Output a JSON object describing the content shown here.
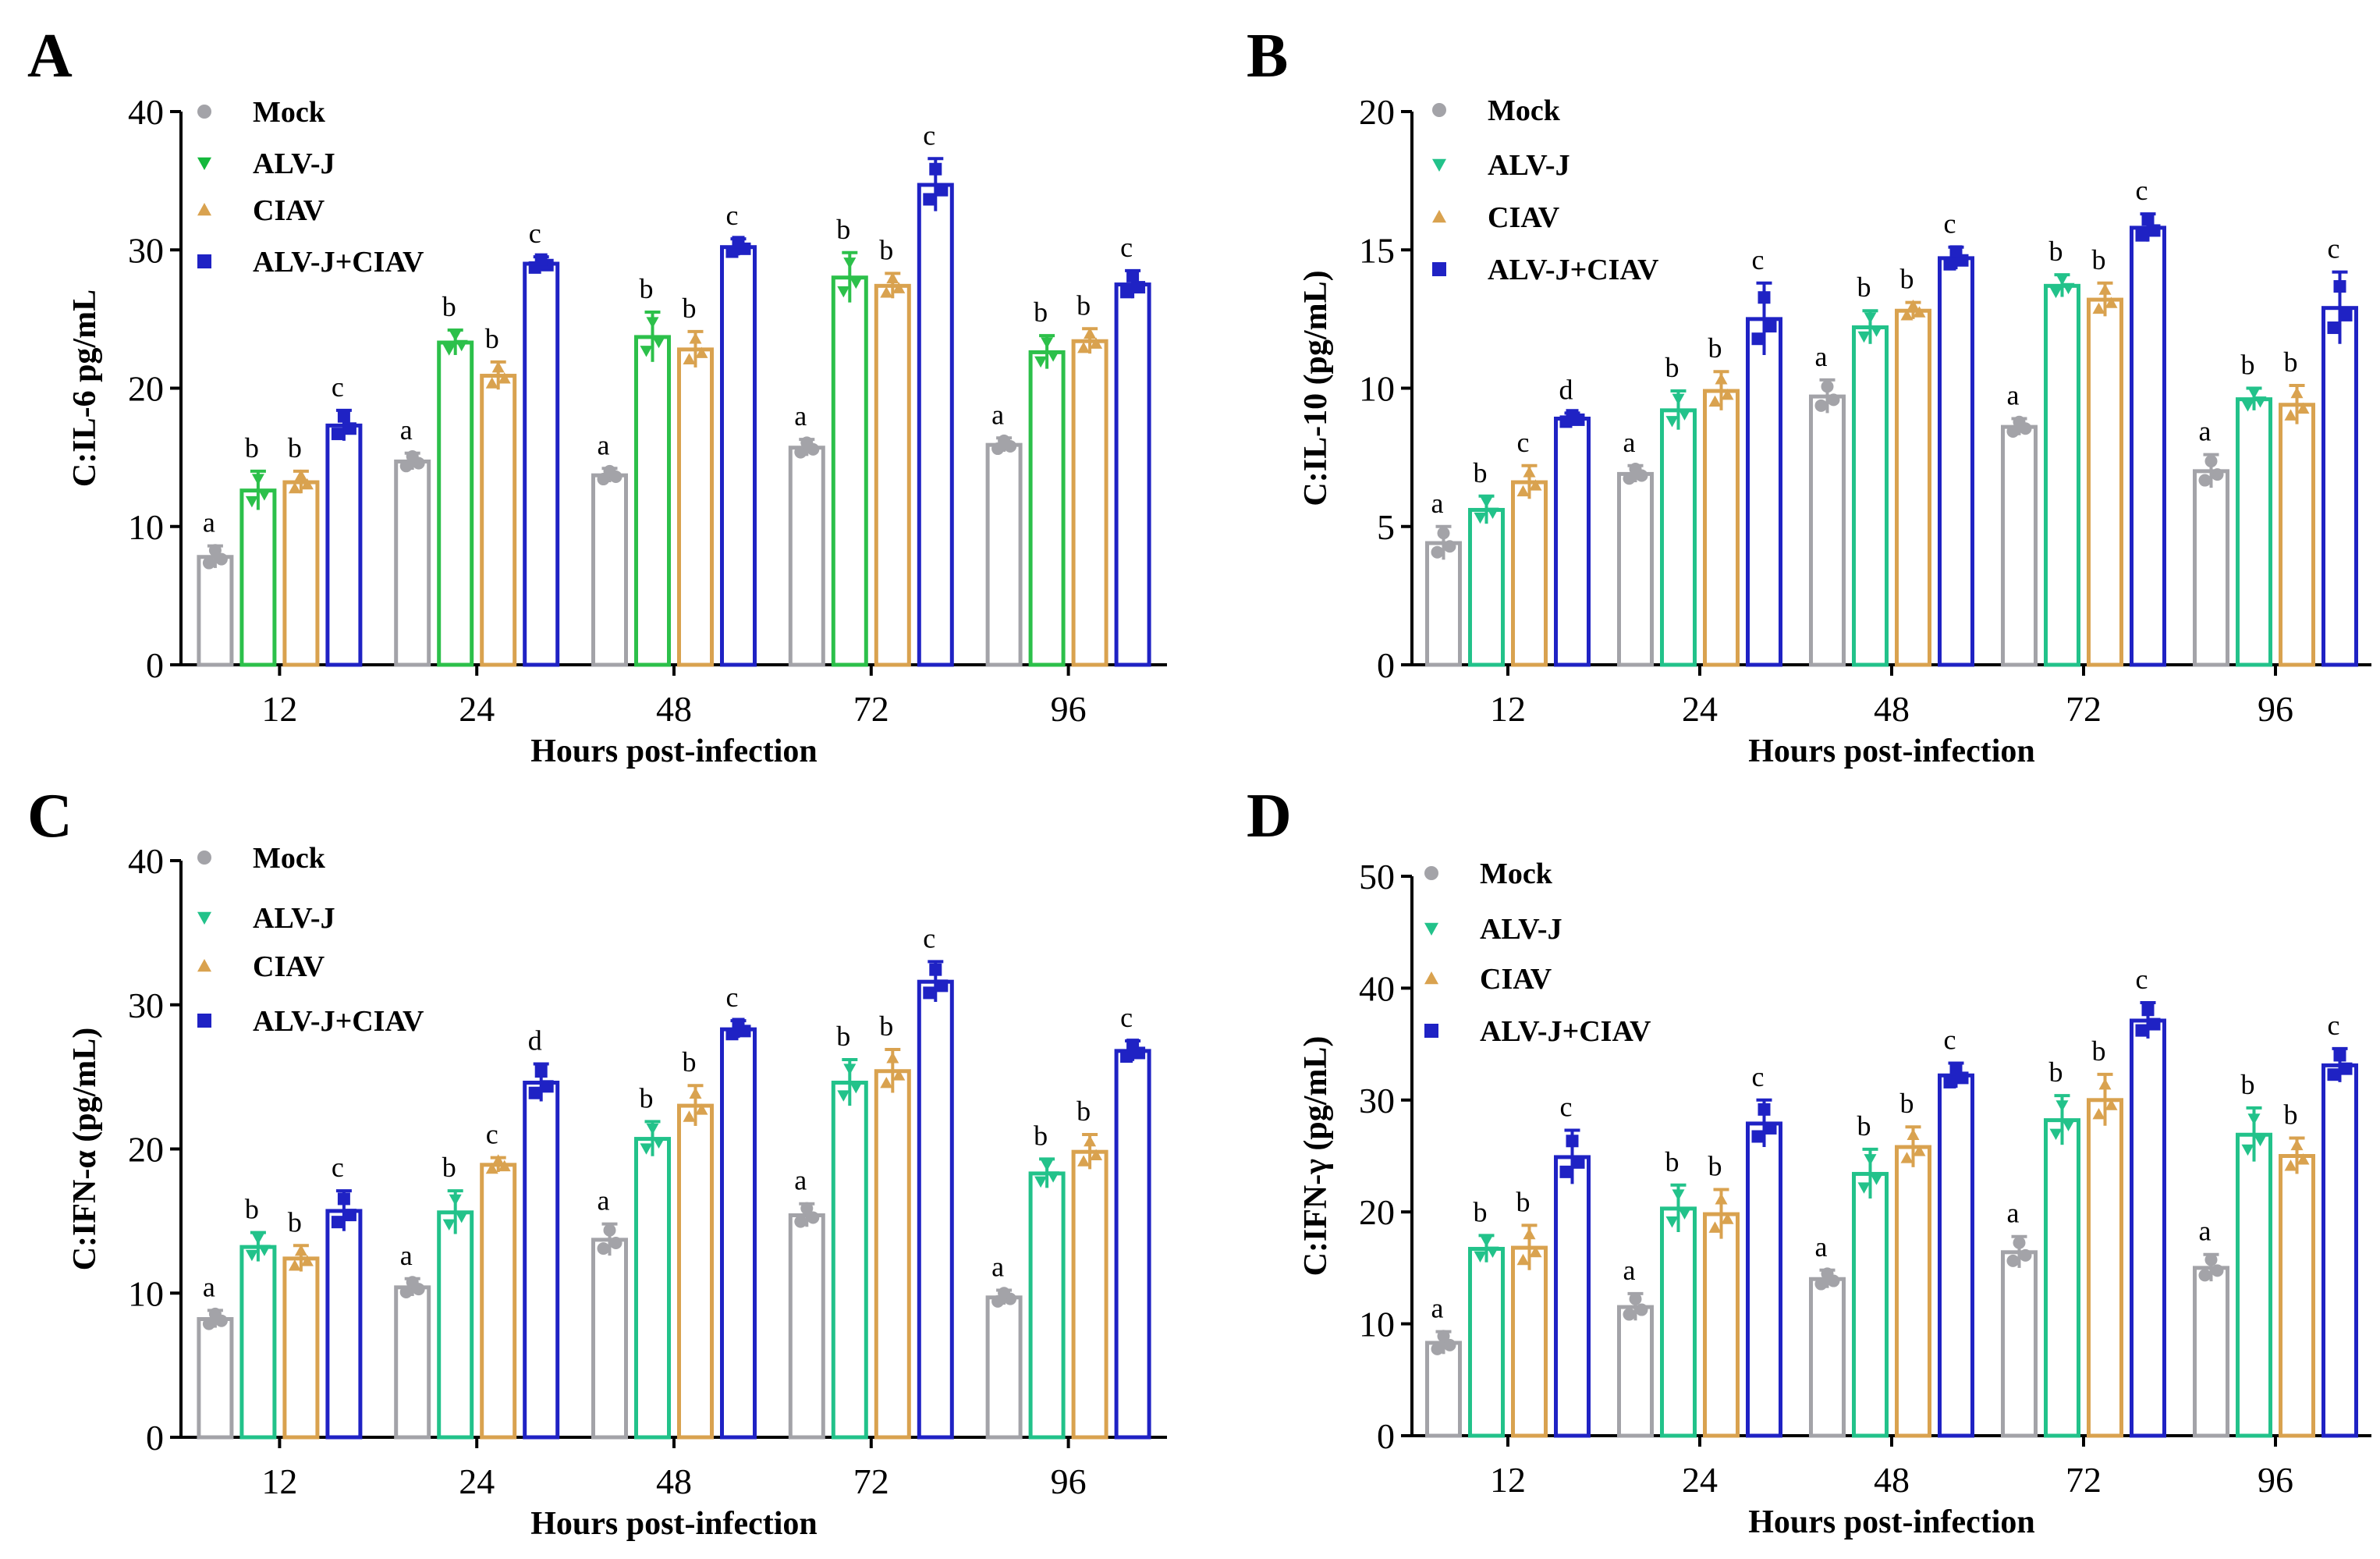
{
  "figure": {
    "groups": [
      "Mock",
      "ALV-J",
      "CIAV",
      "ALV-J+CIAV"
    ],
    "colors": {
      "Mock": "#a3a3a8",
      "ALV-J": "#22c28a",
      "CIAV": "#d9a24f",
      "ALV-J+CIAV": "#1f22c4",
      "ALV-J-legend-A": "#14b83c",
      "ALV-J-A": "#2cc04a"
    }
  },
  "chart_data": [
    {
      "panel": "A",
      "type": "bar",
      "title": "",
      "xlabel": "Hours post-infection",
      "ylabel": "C:IL-6 pg/mL",
      "categories": [
        "12",
        "24",
        "48",
        "72",
        "96"
      ],
      "ylim": [
        0,
        40
      ],
      "yticks": [
        "0",
        "10",
        "20",
        "30",
        "40"
      ],
      "legend": [
        "Mock",
        "ALV-J",
        "CIAV",
        "ALV-J+CIAV"
      ],
      "series": [
        {
          "name": "Mock",
          "values": [
            7.8,
            14.7,
            13.7,
            15.7,
            15.9
          ],
          "errors": [
            0.8,
            0.6,
            0.5,
            0.6,
            0.5
          ],
          "letters": [
            "a",
            "a",
            "a",
            "a",
            "a"
          ]
        },
        {
          "name": "ALV-J",
          "values": [
            12.6,
            23.3,
            23.7,
            28.0,
            22.6
          ],
          "errors": [
            1.4,
            0.9,
            1.8,
            1.8,
            1.2
          ],
          "letters": [
            "b",
            "b",
            "b",
            "b",
            "b"
          ]
        },
        {
          "name": "CIAV",
          "values": [
            13.2,
            20.9,
            22.8,
            27.4,
            23.4
          ],
          "errors": [
            0.8,
            1.0,
            1.3,
            0.9,
            0.9
          ],
          "letters": [
            "b",
            "b",
            "b",
            "b",
            "b"
          ]
        },
        {
          "name": "ALV-J+CIAV",
          "values": [
            17.3,
            29.0,
            30.2,
            34.7,
            27.5
          ],
          "errors": [
            1.1,
            0.5,
            0.6,
            1.9,
            1.0
          ],
          "letters": [
            "c",
            "c",
            "c",
            "c",
            "c"
          ]
        }
      ]
    },
    {
      "panel": "B",
      "type": "bar",
      "title": "",
      "xlabel": "Hours post-infection",
      "ylabel": "C:IL-10 (pg/mL)",
      "categories": [
        "12",
        "24",
        "48",
        "72",
        "96"
      ],
      "ylim": [
        0,
        20
      ],
      "yticks": [
        "0",
        "5",
        "10",
        "15",
        "20"
      ],
      "legend": [
        "Mock",
        "ALV-J",
        "CIAV",
        "ALV-J+CIAV"
      ],
      "series": [
        {
          "name": "Mock",
          "values": [
            4.4,
            6.9,
            9.7,
            8.6,
            7.0
          ],
          "errors": [
            0.6,
            0.3,
            0.6,
            0.3,
            0.6
          ],
          "letters": [
            "a",
            "a",
            "a",
            "a",
            "a"
          ]
        },
        {
          "name": "ALV-J",
          "values": [
            5.6,
            9.2,
            12.2,
            13.7,
            9.6
          ],
          "errors": [
            0.5,
            0.7,
            0.6,
            0.4,
            0.4
          ],
          "letters": [
            "b",
            "b",
            "b",
            "b",
            "b"
          ]
        },
        {
          "name": "CIAV",
          "values": [
            6.6,
            9.9,
            12.8,
            13.2,
            9.4
          ],
          "errors": [
            0.6,
            0.7,
            0.3,
            0.6,
            0.7
          ],
          "letters": [
            "c",
            "b",
            "b",
            "b",
            "b"
          ]
        },
        {
          "name": "ALV-J+CIAV",
          "values": [
            8.9,
            12.5,
            14.7,
            15.8,
            12.9
          ],
          "errors": [
            0.2,
            1.3,
            0.4,
            0.5,
            1.3
          ],
          "letters": [
            "d",
            "c",
            "c",
            "c",
            "c"
          ]
        }
      ]
    },
    {
      "panel": "C",
      "type": "bar",
      "title": "",
      "xlabel": "Hours post-infection",
      "ylabel": "C:IFN-α (pg/mL)",
      "categories": [
        "12",
        "24",
        "48",
        "72",
        "96"
      ],
      "ylim": [
        0,
        40
      ],
      "yticks": [
        "0",
        "10",
        "20",
        "30",
        "40"
      ],
      "legend": [
        "Mock",
        "ALV-J",
        "CIAV",
        "ALV-J+CIAV"
      ],
      "series": [
        {
          "name": "Mock",
          "values": [
            8.2,
            10.4,
            13.7,
            15.4,
            9.7
          ],
          "errors": [
            0.6,
            0.6,
            1.1,
            0.8,
            0.5
          ],
          "letters": [
            "a",
            "a",
            "a",
            "a",
            "a"
          ]
        },
        {
          "name": "ALV-J",
          "values": [
            13.2,
            15.6,
            20.7,
            24.6,
            18.3
          ],
          "errors": [
            1.0,
            1.5,
            1.2,
            1.6,
            1.0
          ],
          "letters": [
            "b",
            "b",
            "b",
            "b",
            "b"
          ]
        },
        {
          "name": "CIAV",
          "values": [
            12.4,
            18.9,
            23.0,
            25.4,
            19.8
          ],
          "errors": [
            0.9,
            0.5,
            1.4,
            1.5,
            1.2
          ],
          "letters": [
            "b",
            "c",
            "b",
            "b",
            "b"
          ]
        },
        {
          "name": "ALV-J+CIAV",
          "values": [
            15.7,
            24.6,
            28.3,
            31.6,
            26.8
          ],
          "errors": [
            1.4,
            1.3,
            0.6,
            1.4,
            0.7
          ],
          "letters": [
            "c",
            "d",
            "c",
            "c",
            "c"
          ]
        }
      ]
    },
    {
      "panel": "D",
      "type": "bar",
      "title": "",
      "xlabel": "Hours post-infection",
      "ylabel": "C:IFN-γ (pg/mL)",
      "categories": [
        "12",
        "24",
        "48",
        "72",
        "96"
      ],
      "ylim": [
        0,
        50
      ],
      "yticks": [
        "0",
        "10",
        "20",
        "30",
        "40",
        "50"
      ],
      "legend": [
        "Mock",
        "ALV-J",
        "CIAV",
        "ALV-J+CIAV"
      ],
      "series": [
        {
          "name": "Mock",
          "values": [
            8.3,
            11.5,
            14.0,
            16.4,
            15.0
          ],
          "errors": [
            1.0,
            1.2,
            0.8,
            1.4,
            1.2
          ],
          "letters": [
            "a",
            "a",
            "a",
            "a",
            "a"
          ]
        },
        {
          "name": "ALV-J",
          "values": [
            16.7,
            20.3,
            23.4,
            28.2,
            26.9
          ],
          "errors": [
            1.2,
            2.1,
            2.2,
            2.2,
            2.4
          ],
          "letters": [
            "b",
            "b",
            "b",
            "b",
            "b"
          ]
        },
        {
          "name": "CIAV",
          "values": [
            16.8,
            19.8,
            25.8,
            30.0,
            25.0
          ],
          "errors": [
            2.0,
            2.2,
            1.8,
            2.3,
            1.6
          ],
          "letters": [
            "b",
            "b",
            "b",
            "b",
            "b"
          ]
        },
        {
          "name": "ALV-J+CIAV",
          "values": [
            24.9,
            27.9,
            32.2,
            37.1,
            33.1
          ],
          "errors": [
            2.4,
            2.1,
            1.1,
            1.6,
            1.5
          ],
          "letters": [
            "c",
            "c",
            "c",
            "c",
            "c"
          ]
        }
      ]
    }
  ]
}
